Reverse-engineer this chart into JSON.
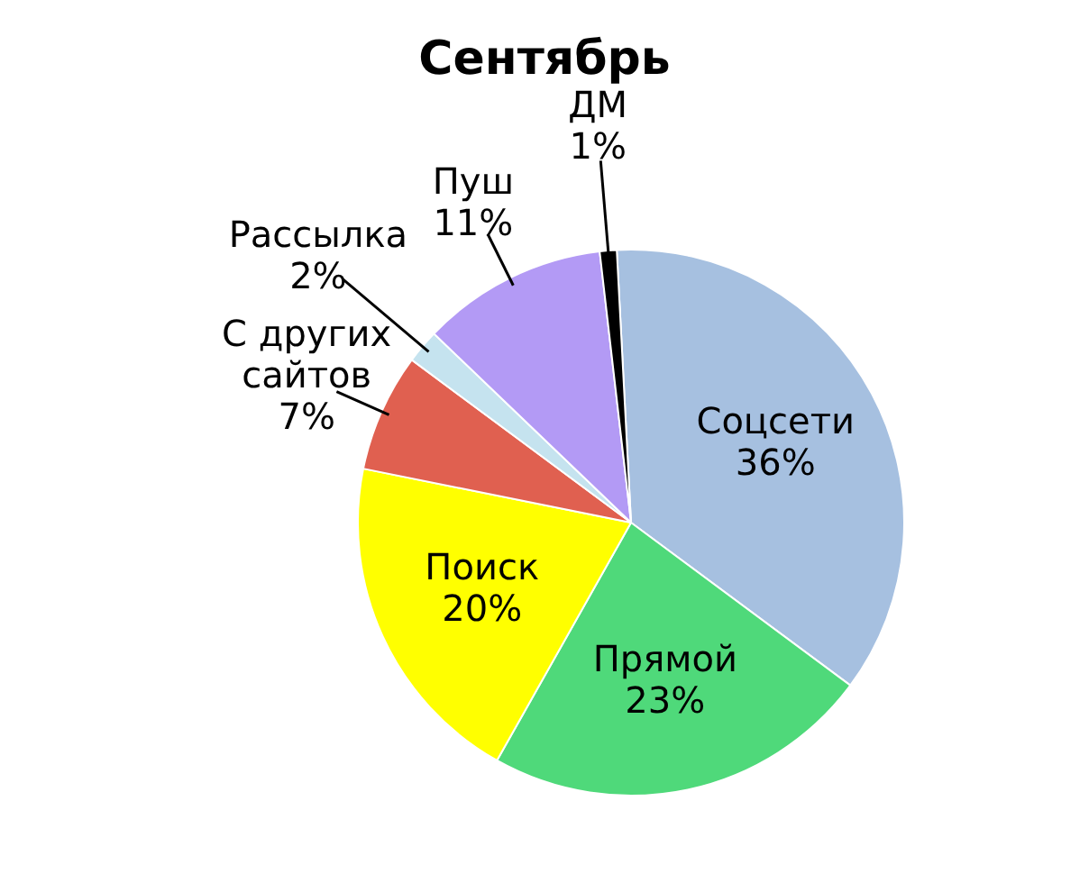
{
  "chart_data": {
    "type": "pie",
    "title": "Сентябрь",
    "categories": [
      "Соцсети",
      "Прямой",
      "Поиск",
      "С других сайтов",
      "Рассылка",
      "Пуш",
      "ДМ"
    ],
    "values": [
      36,
      23,
      20,
      7,
      2,
      11,
      1
    ],
    "colors": [
      "#a6c0e0",
      "#4fd97a",
      "#ffff00",
      "#e06050",
      "#c5e3ef",
      "#b39af5",
      "#000000"
    ],
    "value_labels": [
      "36%",
      "23%",
      "20%",
      "7%",
      "2%",
      "11%",
      "1%"
    ],
    "legend": false
  }
}
